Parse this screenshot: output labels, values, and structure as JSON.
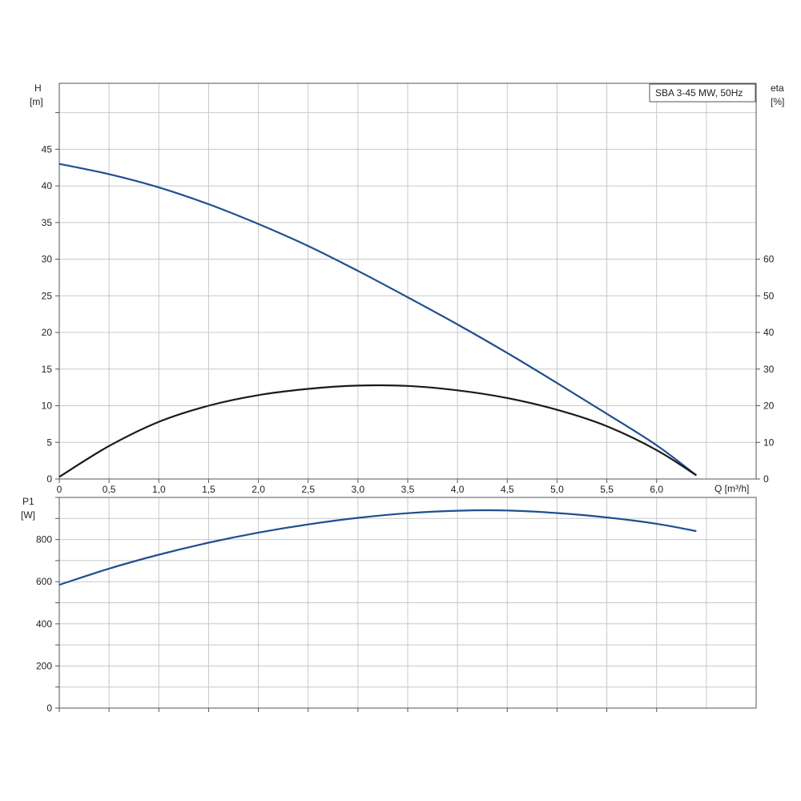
{
  "colors": {
    "head_curve": "#1f4f8f",
    "efficiency_curve": "#1a1a1a",
    "power_curve": "#1f4f8f",
    "grid": "#c8c8c8",
    "frame": "#555555"
  },
  "chart_data": [
    {
      "type": "line",
      "title": "SBA 3-45 MW, 50Hz",
      "title_placement": "top-right",
      "grid": true,
      "x_label": "Q [m³/h]",
      "x_range": [
        0,
        7.0
      ],
      "x_ticks": [
        "0",
        "0,5",
        "1,0",
        "1,5",
        "2,0",
        "2,5",
        "3,0",
        "3,5",
        "4,0",
        "4,5",
        "5,0",
        "5,5",
        "6,0"
      ],
      "y_left_label": "H",
      "y_left_unit": "[m]",
      "y_left_range": [
        0,
        54
      ],
      "y_left_ticks": [
        "0",
        "5",
        "10",
        "15",
        "20",
        "25",
        "30",
        "35",
        "40",
        "45"
      ],
      "y_right_label": "eta",
      "y_right_unit": "[%]",
      "y_right_range": [
        0,
        108
      ],
      "y_right_ticks": [
        "0",
        "10",
        "20",
        "30",
        "40",
        "50",
        "60"
      ],
      "series": [
        {
          "axis": "left",
          "color": "#1f4f8f",
          "points": [
            [
              0.0,
              43.0
            ],
            [
              0.5,
              41.6
            ],
            [
              1.0,
              39.8
            ],
            [
              1.5,
              37.5
            ],
            [
              2.0,
              34.8
            ],
            [
              2.5,
              31.8
            ],
            [
              3.0,
              28.4
            ],
            [
              3.5,
              24.8
            ],
            [
              4.0,
              21.1
            ],
            [
              4.5,
              17.2
            ],
            [
              5.0,
              13.1
            ],
            [
              5.5,
              8.9
            ],
            [
              6.0,
              4.6
            ],
            [
              6.4,
              0.5
            ]
          ]
        },
        {
          "axis": "right",
          "color": "#1a1a1a",
          "points": [
            [
              0.0,
              0.6
            ],
            [
              0.5,
              9.0
            ],
            [
              1.0,
              15.6
            ],
            [
              1.5,
              20.0
            ],
            [
              2.0,
              22.9
            ],
            [
              2.5,
              24.6
            ],
            [
              3.0,
              25.5
            ],
            [
              3.5,
              25.4
            ],
            [
              4.0,
              24.2
            ],
            [
              4.5,
              22.1
            ],
            [
              5.0,
              18.9
            ],
            [
              5.5,
              14.4
            ],
            [
              6.0,
              7.9
            ],
            [
              6.4,
              1.0
            ]
          ]
        }
      ]
    },
    {
      "type": "line",
      "grid": true,
      "x_range": [
        0,
        7.0
      ],
      "y_left_label": "P1",
      "y_left_unit": "[W]",
      "y_left_range": [
        0,
        1000
      ],
      "y_left_ticks": [
        "0",
        "200",
        "400",
        "600",
        "800"
      ],
      "series": [
        {
          "axis": "left",
          "color": "#1f4f8f",
          "points": [
            [
              0.0,
              585
            ],
            [
              0.5,
              662
            ],
            [
              1.0,
              728
            ],
            [
              1.5,
              785
            ],
            [
              2.0,
              833
            ],
            [
              2.5,
              872
            ],
            [
              3.0,
              903
            ],
            [
              3.5,
              925
            ],
            [
              4.0,
              937
            ],
            [
              4.5,
              938
            ],
            [
              5.0,
              926
            ],
            [
              5.5,
              905
            ],
            [
              6.0,
              875
            ],
            [
              6.4,
              840
            ]
          ]
        }
      ]
    }
  ]
}
